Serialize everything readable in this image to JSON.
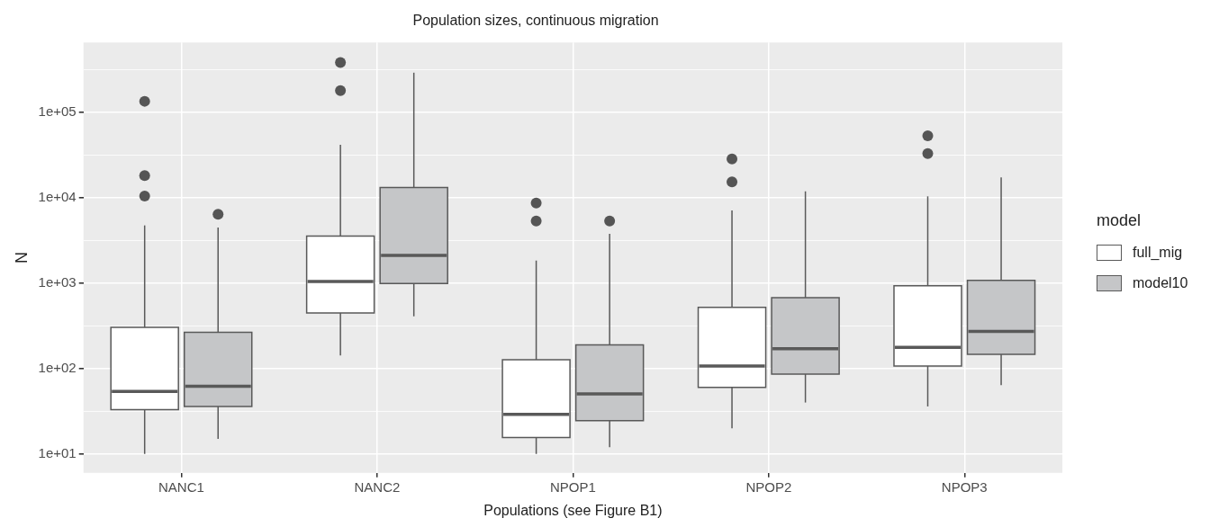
{
  "chart_data": {
    "type": "box",
    "title": "Population sizes, continuous migration",
    "xlabel": "Populations (see Figure B1)",
    "ylabel": "N",
    "legend_title": "model",
    "legend": "right",
    "grid": true,
    "log": "y",
    "categories": [
      "NANC1",
      "NANC2",
      "NPOP1",
      "NPOP2",
      "NPOP3"
    ],
    "ylim": [
      6,
      660000
    ],
    "yticks": [
      {
        "value": 10,
        "label": "1e+01"
      },
      {
        "value": 31.6,
        "label": null
      },
      {
        "value": 100,
        "label": "1e+02"
      },
      {
        "value": 316,
        "label": null
      },
      {
        "value": 1000,
        "label": "1e+03"
      },
      {
        "value": 3160,
        "label": null
      },
      {
        "value": 10000,
        "label": "1e+04"
      },
      {
        "value": 31600,
        "label": null
      },
      {
        "value": 100000,
        "label": "1e+05"
      },
      {
        "value": 316000,
        "label": null
      }
    ],
    "series": [
      {
        "name": "full_mig",
        "color": "#ffffff",
        "boxes": [
          {
            "low": 10,
            "q1": 33,
            "median": 54,
            "q3": 303,
            "high": 4750,
            "outliers": [
              10500,
              18200,
              135000
            ]
          },
          {
            "low": 142,
            "q1": 447,
            "median": 1045,
            "q3": 3560,
            "high": 41800,
            "outliers": [
              180000,
              385000
            ]
          },
          {
            "low": 10,
            "q1": 15.6,
            "median": 29,
            "q3": 127,
            "high": 1840,
            "outliers": [
              5350,
              8700
            ]
          },
          {
            "low": 20,
            "q1": 60,
            "median": 107,
            "q3": 520,
            "high": 7130,
            "outliers": [
              15400,
              28500
            ]
          },
          {
            "low": 36,
            "q1": 107,
            "median": 177,
            "q3": 935,
            "high": 10400,
            "outliers": [
              33000,
              53100
            ]
          }
        ]
      },
      {
        "name": "model10",
        "color": "#c5c6c8",
        "boxes": [
          {
            "low": 15,
            "q1": 36,
            "median": 62,
            "q3": 266,
            "high": 4490,
            "outliers": [
              6400
            ]
          },
          {
            "low": 409,
            "q1": 989,
            "median": 2120,
            "q3": 13200,
            "high": 292000
          },
          {
            "low": 12,
            "q1": 24.5,
            "median": 50.5,
            "q3": 189,
            "high": 3790,
            "outliers": [
              5350
            ]
          },
          {
            "low": 40,
            "q1": 86,
            "median": 171,
            "q3": 678,
            "high": 11900
          },
          {
            "low": 64,
            "q1": 147,
            "median": 273,
            "q3": 1080,
            "high": 17300
          }
        ]
      }
    ]
  }
}
